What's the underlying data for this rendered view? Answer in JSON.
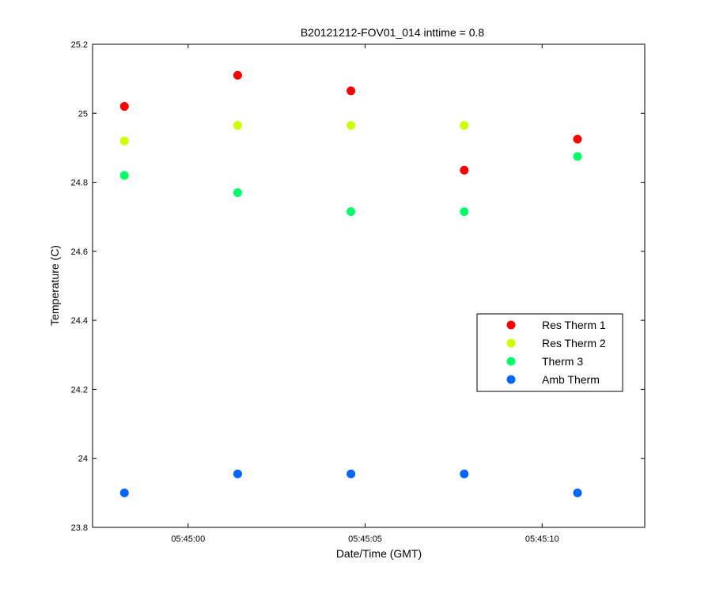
{
  "chart_data": {
    "type": "scatter",
    "title": "B20121212-FOV01_014 inttime = 0.8",
    "xlabel": "Date/Time (GMT)",
    "ylabel": "Temperature (C)",
    "xlim": [
      "05:44:57.3",
      "05:45:12.9"
    ],
    "ylim": [
      23.8,
      25.2
    ],
    "yticks": [
      23.8,
      24,
      24.2,
      24.4,
      24.6,
      24.8,
      25,
      25.2
    ],
    "ytick_labels": [
      "23.8",
      "24",
      "24.2",
      "24.4",
      "24.6",
      "24.8",
      "25",
      "25.2"
    ],
    "xticks": [
      "05:45:00",
      "05:45:05",
      "05:45:10"
    ],
    "x": [
      "05:44:58.2",
      "05:45:01.4",
      "05:45:04.6",
      "05:45:07.8",
      "05:45:11.0"
    ],
    "legend_position": "right",
    "grid": false,
    "series": [
      {
        "name": "Res Therm 1",
        "color": "#ff0000",
        "values": [
          25.02,
          25.11,
          25.065,
          24.835,
          24.925
        ]
      },
      {
        "name": "Res Therm 2",
        "color": "#ccff00",
        "values": [
          24.92,
          24.965,
          24.965,
          24.965,
          null
        ]
      },
      {
        "name": "Therm 3",
        "color": "#00ff66",
        "values": [
          24.82,
          24.77,
          24.715,
          24.715,
          24.875
        ]
      },
      {
        "name": "Amb Therm",
        "color": "#0066ff",
        "values": [
          23.9,
          23.955,
          23.955,
          23.955,
          23.9
        ]
      }
    ]
  }
}
